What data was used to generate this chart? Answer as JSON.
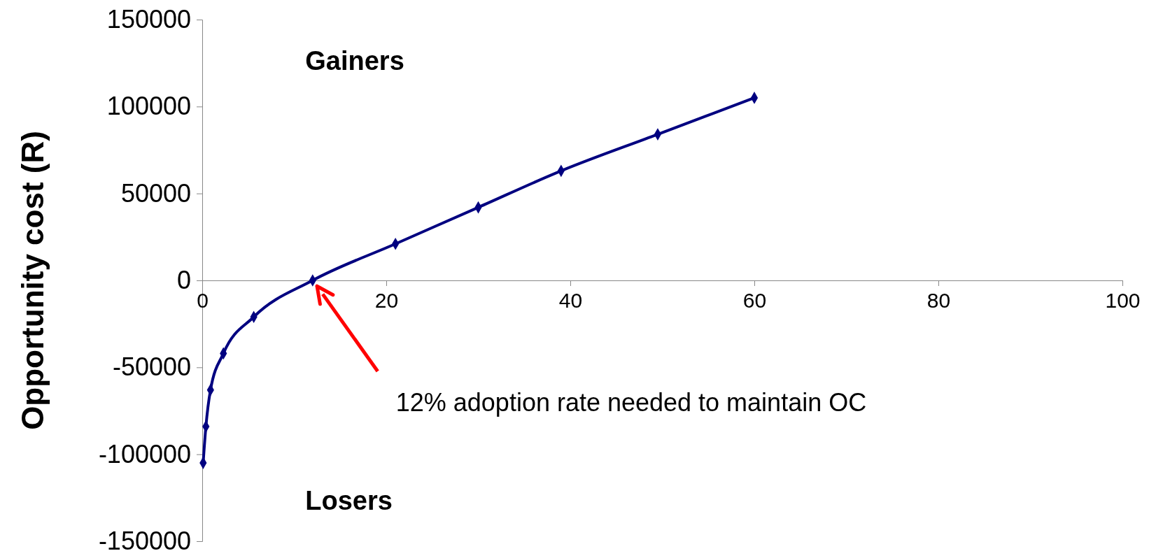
{
  "chart_data": {
    "type": "line",
    "ylabel": "Opportunity cost (R)",
    "x": [
      0.1,
      0.4,
      0.9,
      2.3,
      5.6,
      12,
      21,
      30,
      39,
      49.5,
      60
    ],
    "series": [
      {
        "color": "#000080",
        "values": [
          -105000,
          -84000,
          -63000,
          -42000,
          -21000,
          0,
          21000,
          42000,
          63000,
          84000,
          105000
        ]
      }
    ],
    "xlim": [
      0,
      100
    ],
    "xticks": [
      0,
      20,
      40,
      60,
      80,
      100
    ],
    "ylim": [
      -150000,
      150000
    ],
    "yticks": [
      -150000,
      -100000,
      -50000,
      0,
      50000,
      100000,
      150000
    ],
    "grid": false,
    "marker": "diamond",
    "line_style": "solid",
    "annotations": [
      "Gainers",
      "Losers",
      "12% adoption rate needed to maintain OC"
    ]
  }
}
